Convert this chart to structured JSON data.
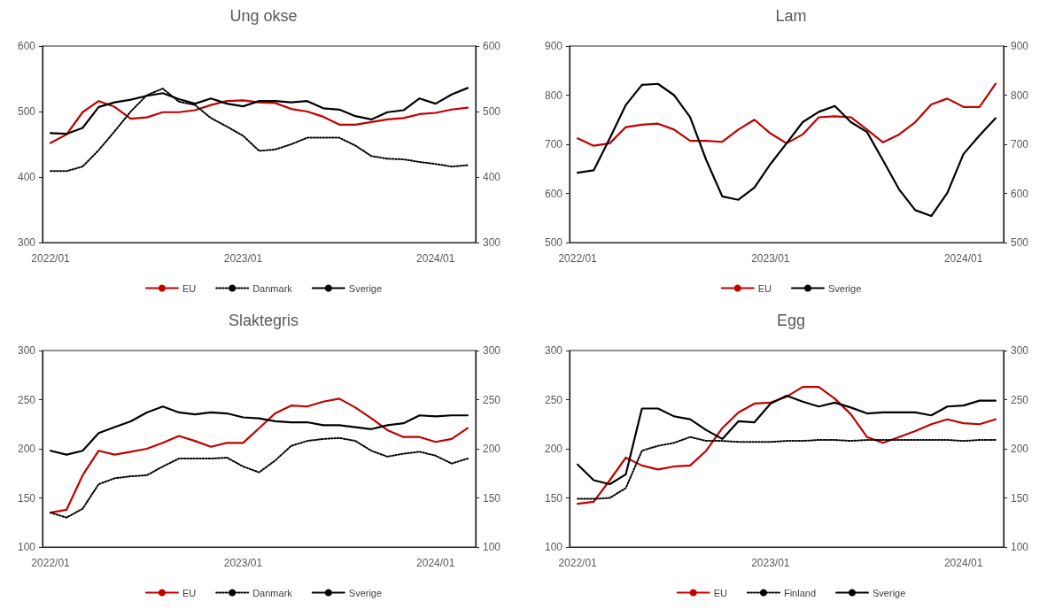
{
  "chart_data": [
    {
      "type": "line",
      "title": "Ung okse",
      "categories": [
        "2022/01",
        null,
        null,
        null,
        null,
        null,
        null,
        null,
        null,
        null,
        null,
        null,
        "2023/01",
        null,
        null,
        null,
        null,
        null,
        null,
        null,
        null,
        null,
        null,
        null,
        "2024/01",
        null,
        null
      ],
      "series": [
        {
          "name": "EU",
          "color": "#c00000",
          "line_style": "solid",
          "values": [
            452,
            465,
            499,
            516,
            507,
            489,
            491,
            499,
            499,
            502,
            510,
            516,
            517,
            514,
            513,
            504,
            500,
            492,
            480,
            480,
            484,
            488,
            490,
            496,
            498,
            503,
            506
          ]
        },
        {
          "name": "Danmark",
          "color": "#000000",
          "line_style": "dotted",
          "values": [
            409,
            409,
            416,
            441,
            470,
            500,
            525,
            535,
            515,
            510,
            490,
            477,
            463,
            440,
            442,
            450,
            460,
            460,
            460,
            448,
            432,
            428,
            427,
            423,
            420,
            416,
            418
          ]
        },
        {
          "name": "Sverige",
          "color": "#000000",
          "line_style": "solid",
          "values": [
            467,
            466,
            475,
            507,
            514,
            518,
            524,
            528,
            519,
            512,
            520,
            512,
            508,
            516,
            516,
            514,
            516,
            505,
            503,
            493,
            488,
            499,
            502,
            520,
            512,
            526,
            536
          ]
        }
      ],
      "ylim": [
        300,
        600
      ],
      "yticks": [
        300,
        400,
        500,
        600
      ],
      "y2lim": [
        300,
        600
      ],
      "y2ticks": [
        300,
        400,
        500,
        600
      ],
      "legend": "bottom",
      "marker": "none",
      "grid": false
    },
    {
      "type": "line",
      "title": "Lam",
      "categories": [
        "2022/01",
        null,
        null,
        null,
        null,
        null,
        null,
        null,
        null,
        null,
        null,
        null,
        "2023/01",
        null,
        null,
        null,
        null,
        null,
        null,
        null,
        null,
        null,
        null,
        null,
        "2024/01",
        null,
        null
      ],
      "series": [
        {
          "name": "EU",
          "color": "#c00000",
          "line_style": "solid",
          "values": [
            712,
            697,
            702,
            735,
            740,
            742,
            730,
            707,
            707,
            705,
            730,
            750,
            722,
            702,
            720,
            755,
            757,
            755,
            730,
            704,
            720,
            745,
            781,
            793,
            776,
            776,
            823
          ]
        },
        {
          "name": "Sverige",
          "color": "#000000",
          "line_style": "solid",
          "values": [
            642,
            647,
            712,
            780,
            821,
            823,
            800,
            755,
            668,
            594,
            587,
            612,
            660,
            702,
            745,
            766,
            778,
            745,
            725,
            667,
            608,
            566,
            554,
            601,
            680,
            718,
            753
          ]
        }
      ],
      "ylim": [
        500,
        900
      ],
      "yticks": [
        500,
        600,
        700,
        800,
        900
      ],
      "y2lim": [
        500,
        900
      ],
      "y2ticks": [
        500,
        600,
        700,
        800,
        900
      ],
      "legend": "bottom",
      "marker": "none",
      "grid": false
    },
    {
      "type": "line",
      "title": "Slaktegris",
      "categories": [
        "2022/01",
        null,
        null,
        null,
        null,
        null,
        null,
        null,
        null,
        null,
        null,
        null,
        "2023/01",
        null,
        null,
        null,
        null,
        null,
        null,
        null,
        null,
        null,
        null,
        null,
        "2024/01",
        null,
        null
      ],
      "series": [
        {
          "name": "EU",
          "color": "#c00000",
          "line_style": "solid",
          "values": [
            135,
            138,
            173,
            198,
            194,
            197,
            200,
            206,
            213,
            208,
            202,
            206,
            206,
            221,
            236,
            244,
            243,
            248,
            251,
            242,
            231,
            219,
            212,
            212,
            207,
            210,
            221
          ]
        },
        {
          "name": "Danmark",
          "color": "#000000",
          "line_style": "dotted",
          "values": [
            135,
            130,
            139,
            164,
            170,
            172,
            173,
            182,
            190,
            190,
            190,
            191,
            182,
            176,
            188,
            203,
            208,
            210,
            211,
            208,
            198,
            192,
            195,
            197,
            193,
            185,
            190
          ]
        },
        {
          "name": "Sverige",
          "color": "#000000",
          "line_style": "solid",
          "values": [
            198,
            194,
            198,
            216,
            222,
            228,
            237,
            243,
            237,
            235,
            237,
            236,
            232,
            231,
            228,
            227,
            227,
            224,
            224,
            222,
            220,
            224,
            226,
            234,
            233,
            234,
            234
          ]
        }
      ],
      "ylim": [
        100,
        300
      ],
      "yticks": [
        100,
        150,
        200,
        250,
        300
      ],
      "y2lim": [
        100,
        300
      ],
      "y2ticks": [
        100,
        150,
        200,
        250,
        300
      ],
      "legend": "bottom",
      "marker": "none",
      "grid": false
    },
    {
      "type": "line",
      "title": "Egg",
      "categories": [
        "2022/01",
        null,
        null,
        null,
        null,
        null,
        null,
        null,
        null,
        null,
        null,
        null,
        "2023/01",
        null,
        null,
        null,
        null,
        null,
        null,
        null,
        null,
        null,
        null,
        null,
        "2024/01",
        null,
        null
      ],
      "series": [
        {
          "name": "EU",
          "color": "#c00000",
          "line_style": "solid",
          "values": [
            144,
            146,
            168,
            191,
            183,
            179,
            182,
            183,
            198,
            221,
            237,
            246,
            247,
            253,
            263,
            263,
            251,
            235,
            212,
            206,
            212,
            218,
            225,
            230,
            226,
            225,
            230
          ]
        },
        {
          "name": "Finland",
          "color": "#000000",
          "line_style": "dotted",
          "values": [
            149,
            149,
            150,
            160,
            198,
            203,
            206,
            212,
            208,
            208,
            207,
            207,
            207,
            208,
            208,
            209,
            209,
            208,
            209,
            209,
            209,
            209,
            209,
            209,
            208,
            209,
            209
          ]
        },
        {
          "name": "Sverige",
          "color": "#000000",
          "line_style": "solid",
          "values": [
            184,
            168,
            164,
            174,
            241,
            241,
            233,
            230,
            219,
            210,
            228,
            227,
            246,
            254,
            248,
            243,
            247,
            242,
            236,
            237,
            237,
            237,
            234,
            243,
            244,
            249,
            249
          ]
        }
      ],
      "ylim": [
        100,
        300
      ],
      "yticks": [
        100,
        150,
        200,
        250,
        300
      ],
      "y2lim": [
        100,
        300
      ],
      "y2ticks": [
        100,
        150,
        200,
        250,
        300
      ],
      "legend": "bottom",
      "marker": "none",
      "grid": false
    }
  ]
}
